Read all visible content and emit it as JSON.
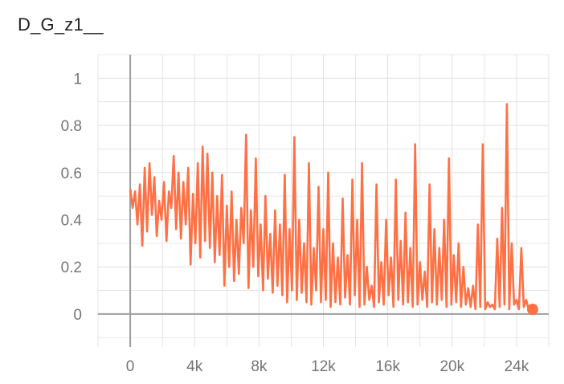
{
  "chart_title": "D_G_z1__",
  "colors": {
    "series": "#ff7043",
    "grid": "#e0e0e0",
    "axis": "#9e9e9e",
    "tick_text": "#757575"
  },
  "chart_data": {
    "type": "line",
    "title": "D_G_z1__",
    "xlabel": "",
    "ylabel": "",
    "xlim": [
      -2000,
      26000
    ],
    "ylim": [
      -0.14,
      1.1
    ],
    "grid": true,
    "legend": "none",
    "x_ticks": [
      0,
      4000,
      8000,
      12000,
      16000,
      20000,
      24000
    ],
    "x_tick_labels": [
      "0",
      "4k",
      "8k",
      "12k",
      "16k",
      "20k",
      "24k"
    ],
    "y_ticks": [
      0,
      0.2,
      0.4,
      0.6,
      0.8,
      1
    ],
    "y_tick_labels": [
      "0",
      "0.2",
      "0.4",
      "0.6",
      "0.8",
      "1"
    ],
    "series": [
      {
        "color": "#ff7043",
        "x": [
          0,
          150,
          300,
          450,
          600,
          750,
          900,
          1050,
          1200,
          1350,
          1500,
          1650,
          1800,
          1950,
          2100,
          2250,
          2400,
          2550,
          2700,
          2850,
          3000,
          3150,
          3300,
          3450,
          3600,
          3750,
          3900,
          4050,
          4200,
          4350,
          4500,
          4650,
          4800,
          4950,
          5100,
          5250,
          5400,
          5550,
          5700,
          5850,
          6000,
          6150,
          6300,
          6450,
          6600,
          6750,
          6900,
          7050,
          7200,
          7350,
          7500,
          7650,
          7800,
          7950,
          8100,
          8250,
          8400,
          8550,
          8700,
          8850,
          9000,
          9150,
          9300,
          9450,
          9600,
          9750,
          9900,
          10050,
          10200,
          10350,
          10500,
          10650,
          10800,
          10950,
          11100,
          11250,
          11400,
          11550,
          11700,
          11850,
          12000,
          12150,
          12300,
          12450,
          12600,
          12750,
          12900,
          13050,
          13200,
          13350,
          13500,
          13650,
          13800,
          13950,
          14100,
          14250,
          14400,
          14550,
          14700,
          14850,
          15000,
          15150,
          15300,
          15450,
          15600,
          15750,
          15900,
          16050,
          16200,
          16350,
          16500,
          16650,
          16800,
          16950,
          17100,
          17250,
          17400,
          17550,
          17700,
          17850,
          18000,
          18150,
          18300,
          18450,
          18600,
          18750,
          18900,
          19050,
          19200,
          19350,
          19500,
          19650,
          19800,
          19950,
          20100,
          20250,
          20400,
          20550,
          20700,
          20850,
          21000,
          21150,
          21300,
          21450,
          21600,
          21750,
          21900,
          22050,
          22200,
          22350,
          22500,
          22650,
          22800,
          22950,
          23100,
          23250,
          23400,
          23550,
          23700,
          23850,
          24000,
          24150,
          24300,
          24450,
          24600,
          24750,
          24900,
          25000
        ],
        "y": [
          0.53,
          0.45,
          0.52,
          0.38,
          0.55,
          0.29,
          0.62,
          0.35,
          0.64,
          0.42,
          0.58,
          0.33,
          0.48,
          0.4,
          0.56,
          0.31,
          0.52,
          0.45,
          0.67,
          0.36,
          0.6,
          0.32,
          0.56,
          0.38,
          0.62,
          0.21,
          0.51,
          0.3,
          0.64,
          0.24,
          0.71,
          0.31,
          0.68,
          0.28,
          0.6,
          0.22,
          0.5,
          0.25,
          0.59,
          0.12,
          0.46,
          0.2,
          0.52,
          0.14,
          0.4,
          0.17,
          0.45,
          0.3,
          0.76,
          0.11,
          0.44,
          0.2,
          0.66,
          0.16,
          0.38,
          0.1,
          0.5,
          0.15,
          0.34,
          0.09,
          0.44,
          0.12,
          0.38,
          0.08,
          0.59,
          0.05,
          0.36,
          0.1,
          0.75,
          0.06,
          0.4,
          0.09,
          0.3,
          0.05,
          0.64,
          0.04,
          0.28,
          0.1,
          0.54,
          0.05,
          0.36,
          0.06,
          0.6,
          0.03,
          0.3,
          0.05,
          0.24,
          0.04,
          0.49,
          0.07,
          0.25,
          0.04,
          0.57,
          0.08,
          0.4,
          0.03,
          0.64,
          0.04,
          0.2,
          0.06,
          0.12,
          0.03,
          0.55,
          0.05,
          0.22,
          0.04,
          0.4,
          0.08,
          0.24,
          0.03,
          0.57,
          0.06,
          0.31,
          0.04,
          0.43,
          0.05,
          0.28,
          0.03,
          0.72,
          0.04,
          0.22,
          0.06,
          0.18,
          0.03,
          0.55,
          0.05,
          0.36,
          0.04,
          0.28,
          0.06,
          0.4,
          0.03,
          0.66,
          0.04,
          0.25,
          0.05,
          0.3,
          0.03,
          0.2,
          0.04,
          0.11,
          0.03,
          0.12,
          0.02,
          0.38,
          0.03,
          0.72,
          0.02,
          0.05,
          0.03,
          0.04,
          0.02,
          0.32,
          0.03,
          0.45,
          0.04,
          0.89,
          0.02,
          0.3,
          0.04,
          0.06,
          0.02,
          0.28,
          0.03,
          0.06,
          0.02,
          0.03,
          0.02
        ]
      }
    ],
    "last_point": {
      "x": 25000,
      "y": 0.02
    }
  }
}
